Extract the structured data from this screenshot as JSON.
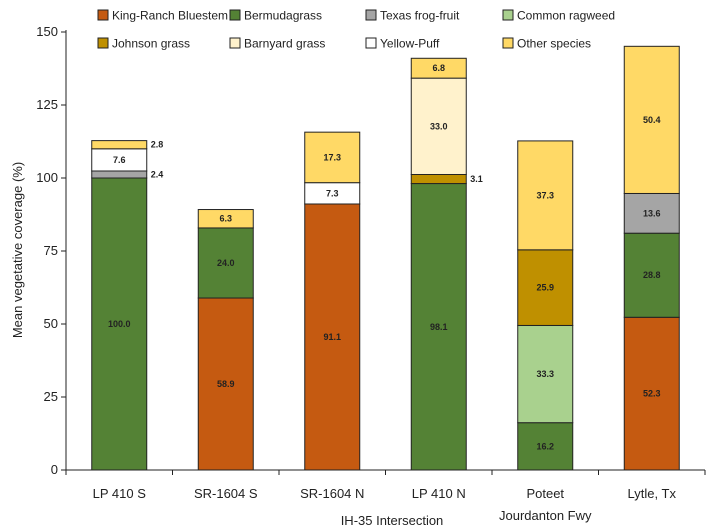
{
  "chart_data": {
    "type": "bar",
    "stacked": true,
    "title": "",
    "ylabel": "Mean vegetative coverage (%)",
    "xlabel": "IH-35 Intersection",
    "ylim": [
      0,
      150
    ],
    "yticks": [
      0,
      25,
      50,
      75,
      100,
      125,
      150
    ],
    "grid": false,
    "legend_position": "top",
    "categories": [
      "LP 410 S",
      "SR-1604 S",
      "SR-1604 N",
      "LP 410 N",
      "Poteet Jourdanton Fwy",
      "Lytle, Tx"
    ],
    "category_lines": [
      [
        "LP 410 S"
      ],
      [
        "SR-1604 S"
      ],
      [
        "SR-1604 N"
      ],
      [
        "LP 410 N"
      ],
      [
        "Poteet",
        "Jourdanton Fwy"
      ],
      [
        "Lytle, Tx"
      ]
    ],
    "series": [
      {
        "name": "King-Ranch Bluestem",
        "color": "#c55a11",
        "values": [
          0,
          58.9,
          91.1,
          0,
          0,
          52.3
        ]
      },
      {
        "name": "Bermudagrass",
        "color": "#548235",
        "values": [
          100.0,
          24.0,
          0,
          98.1,
          16.2,
          28.8
        ]
      },
      {
        "name": "Common ragweed",
        "color": "#a9d18e",
        "values": [
          0,
          0,
          0,
          0,
          33.3,
          0
        ]
      },
      {
        "name": "Johnson grass",
        "color": "#bf9000",
        "values": [
          0,
          0,
          0,
          3.1,
          25.9,
          0
        ]
      },
      {
        "name": "Texas frog-fruit",
        "color": "#a5a5a5",
        "values": [
          2.4,
          0,
          0,
          0,
          0,
          13.6
        ]
      },
      {
        "name": "Yellow-Puff",
        "color": "#ffffff",
        "values": [
          7.6,
          0,
          7.3,
          0,
          0,
          0
        ]
      },
      {
        "name": "Barnyard grass",
        "color": "#fff2cc",
        "values": [
          0,
          0,
          0,
          33.0,
          0,
          0
        ]
      },
      {
        "name": "Other species",
        "color": "#ffd966",
        "values": [
          2.8,
          6.3,
          17.3,
          6.8,
          37.3,
          50.4
        ]
      }
    ],
    "data_labels": [
      {
        "category": 0,
        "series": "Bermudagrass",
        "text": "100.0",
        "placement": "inside"
      },
      {
        "category": 0,
        "series": "Texas frog-fruit",
        "text": "2.4",
        "placement": "outside"
      },
      {
        "category": 0,
        "series": "Yellow-Puff",
        "text": "7.6",
        "placement": "inside"
      },
      {
        "category": 0,
        "series": "Other species",
        "text": "2.8",
        "placement": "outside"
      },
      {
        "category": 1,
        "series": "King-Ranch Bluestem",
        "text": "58.9",
        "placement": "inside"
      },
      {
        "category": 1,
        "series": "Bermudagrass",
        "text": "24.0",
        "placement": "inside"
      },
      {
        "category": 1,
        "series": "Other species",
        "text": "6.3",
        "placement": "inside"
      },
      {
        "category": 2,
        "series": "King-Ranch Bluestem",
        "text": "91.1",
        "placement": "inside"
      },
      {
        "category": 2,
        "series": "Yellow-Puff",
        "text": "7.3",
        "placement": "inside"
      },
      {
        "category": 2,
        "series": "Other species",
        "text": "17.3",
        "placement": "inside"
      },
      {
        "category": 3,
        "series": "Bermudagrass",
        "text": "98.1",
        "placement": "inside"
      },
      {
        "category": 3,
        "series": "Johnson grass",
        "text": "3.1",
        "placement": "outside"
      },
      {
        "category": 3,
        "series": "Barnyard grass",
        "text": "33.0",
        "placement": "inside"
      },
      {
        "category": 3,
        "series": "Other species",
        "text": "6.8",
        "placement": "inside"
      },
      {
        "category": 4,
        "series": "Bermudagrass",
        "text": "16.2",
        "placement": "inside"
      },
      {
        "category": 4,
        "series": "Common ragweed",
        "text": "33.3",
        "placement": "inside"
      },
      {
        "category": 4,
        "series": "Johnson grass",
        "text": "25.9",
        "placement": "inside"
      },
      {
        "category": 4,
        "series": "Other species",
        "text": "37.3",
        "placement": "inside"
      },
      {
        "category": 5,
        "series": "King-Ranch Bluestem",
        "text": "52.3",
        "placement": "inside"
      },
      {
        "category": 5,
        "series": "Bermudagrass",
        "text": "28.8",
        "placement": "inside"
      },
      {
        "category": 5,
        "series": "Texas frog-fruit",
        "text": "13.6",
        "placement": "inside"
      },
      {
        "category": 5,
        "series": "Other species",
        "text": "50.4",
        "placement": "inside"
      }
    ],
    "legend_entries": [
      [
        "King-Ranch Bluestem",
        "Bermudagrass",
        "Texas frog-fruit",
        "Common ragweed"
      ],
      [
        "Johnson grass",
        "Barnyard grass",
        "Yellow-Puff",
        "Other species"
      ]
    ]
  }
}
